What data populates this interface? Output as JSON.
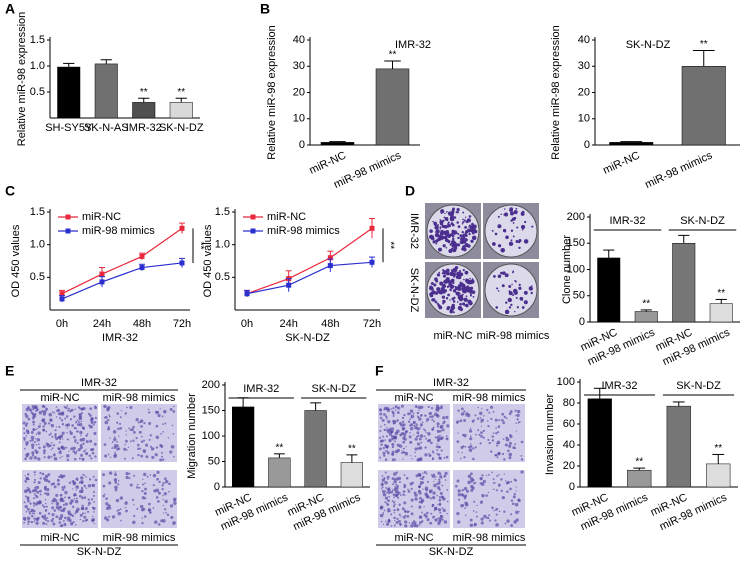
{
  "chart_data": [
    {
      "type": "bar",
      "panel": "A",
      "categories": [
        "SH-SY5Y",
        "SK-N-AS",
        "IMR-32",
        "SK-N-DZ"
      ],
      "values": [
        0.98,
        1.04,
        0.3,
        0.3
      ],
      "errors": [
        0.07,
        0.08,
        0.08,
        0.08
      ],
      "colors": [
        "#000000",
        "#707070",
        "#505050",
        "#d9d9d9"
      ],
      "significance": [
        null,
        null,
        "**",
        "**"
      ],
      "ylabel": "Relative miR-98 expression",
      "ylim": [
        0,
        1.5
      ],
      "yticks": [
        0.5,
        {
          "value": 1,
          "label": "1.0"
        },
        1.5
      ]
    },
    {
      "type": "bar",
      "panel": "B",
      "title": "IMR-32",
      "categories": [
        "miR-NC",
        "miR-98 mimics"
      ],
      "values": [
        1,
        29
      ],
      "errors": [
        0.3,
        3
      ],
      "colors": [
        "#000000",
        "#707070"
      ],
      "significance": [
        null,
        "**"
      ],
      "ylabel": "Relative miR-98 expression",
      "ylim": [
        0,
        40
      ],
      "yticks": [
        0,
        10,
        20,
        30,
        40
      ]
    },
    {
      "type": "bar",
      "title": "SK-N-DZ",
      "categories": [
        "miR-NC",
        "miR-98 mimics"
      ],
      "values": [
        1,
        30
      ],
      "errors": [
        0.3,
        6
      ],
      "colors": [
        "#000000",
        "#707070"
      ],
      "significance": [
        null,
        "**"
      ],
      "ylabel": "Relative miR-98 expression",
      "ylim": [
        0,
        40
      ],
      "yticks": [
        0,
        10,
        20,
        30,
        40
      ]
    },
    {
      "type": "line",
      "panel": "C",
      "x": [
        "0h",
        "24h",
        "48h",
        "72h"
      ],
      "xlabel": "IMR-32",
      "ylabel": "OD 450 values",
      "series": [
        {
          "name": "miR-NC",
          "color": "#e8283c",
          "values": [
            0.25,
            0.55,
            0.82,
            1.25
          ],
          "errors": [
            0.05,
            0.1,
            0.05,
            0.08
          ]
        },
        {
          "name": "miR-98 mimics",
          "color": "#2b2fd0",
          "values": [
            0.17,
            0.43,
            0.65,
            0.72
          ],
          "errors": [
            0.05,
            0.08,
            0.05,
            0.07
          ]
        }
      ],
      "significance": "**",
      "ylim": [
        0,
        1.5
      ],
      "yticks": [
        0.5,
        {
          "value": 1,
          "label": "1.0"
        },
        1.5
      ]
    },
    {
      "type": "line",
      "x": [
        "0h",
        "24h",
        "48h",
        "72h"
      ],
      "xlabel": "SK-N-DZ",
      "ylabel": "OD 450 values",
      "series": [
        {
          "name": "miR-NC",
          "color": "#e8283c",
          "values": [
            0.25,
            0.48,
            0.8,
            1.25
          ],
          "errors": [
            0.05,
            0.12,
            0.1,
            0.15
          ]
        },
        {
          "name": "miR-98 mimics",
          "color": "#2b2fd0",
          "values": [
            0.25,
            0.38,
            0.68,
            0.73
          ],
          "errors": [
            0.05,
            0.1,
            0.1,
            0.08
          ]
        }
      ],
      "significance": "**",
      "ylim": [
        0,
        1.5
      ],
      "yticks": [
        0.5,
        {
          "value": 1,
          "label": "1.0"
        },
        1.5
      ]
    },
    {
      "type": "bar",
      "groups": [
        "IMR-32",
        "SK-N-DZ"
      ],
      "categories": [
        "miR-NC",
        "miR-98 mimics",
        "miR-NC",
        "miR-98 mimics"
      ],
      "values": [
        122,
        20,
        150,
        35
      ],
      "errors": [
        15,
        3,
        15,
        8
      ],
      "colors": [
        "#000000",
        "#999999",
        "#777777",
        "#dddddd"
      ],
      "significance": [
        null,
        "**",
        null,
        "**"
      ],
      "ylabel": "Clone number",
      "ylim": [
        0,
        200
      ],
      "yticks": [
        0,
        50,
        100,
        150,
        200
      ]
    },
    {
      "type": "bar",
      "groups": [
        "IMR-32",
        "SK-N-DZ"
      ],
      "categories": [
        "miR-NC",
        "miR-98 mimics",
        "miR-NC",
        "miR-98 mimics"
      ],
      "values": [
        157,
        57,
        150,
        48
      ],
      "errors": [
        18,
        8,
        15,
        15
      ],
      "colors": [
        "#000000",
        "#999999",
        "#777777",
        "#dddddd"
      ],
      "significance": [
        null,
        "**",
        null,
        "**"
      ],
      "ylabel": "Migration number",
      "ylim": [
        0,
        200
      ],
      "yticks": [
        0,
        50,
        100,
        150,
        200
      ]
    },
    {
      "type": "bar",
      "groups": [
        "IMR-32",
        "SK-N-DZ"
      ],
      "categories": [
        "miR-NC",
        "miR-98 mimics",
        "miR-NC",
        "miR-98 mimics"
      ],
      "values": [
        84,
        16,
        77,
        22
      ],
      "errors": [
        10,
        2,
        4,
        9
      ],
      "colors": [
        "#000000",
        "#999999",
        "#777777",
        "#dddddd"
      ],
      "significance": [
        null,
        "**",
        null,
        "**"
      ],
      "ylabel": "Invasion number",
      "ylim": [
        0,
        100
      ],
      "yticks": [
        0,
        20,
        40,
        60,
        80,
        100
      ]
    }
  ],
  "image_panels": [
    {
      "panel": "D",
      "rows": [
        "IMR-32",
        "SK-N-DZ"
      ],
      "columns": [
        "miR-NC",
        "miR-98 mimics"
      ]
    },
    {
      "panel": "E",
      "top_label": "IMR-32",
      "columns": [
        "miR-NC",
        "miR-98 mimics"
      ],
      "bottom_columns": [
        "miR-NC",
        "miR-98 mimics"
      ],
      "bottom_label": "SK-N-DZ"
    },
    {
      "panel": "F",
      "top_label": "IMR-32",
      "columns": [
        "miR-NC",
        "miR-98 mimics"
      ],
      "bottom_columns": [
        "miR-NC",
        "miR-98 mimics"
      ],
      "bottom_label": "SK-N-DZ"
    }
  ]
}
